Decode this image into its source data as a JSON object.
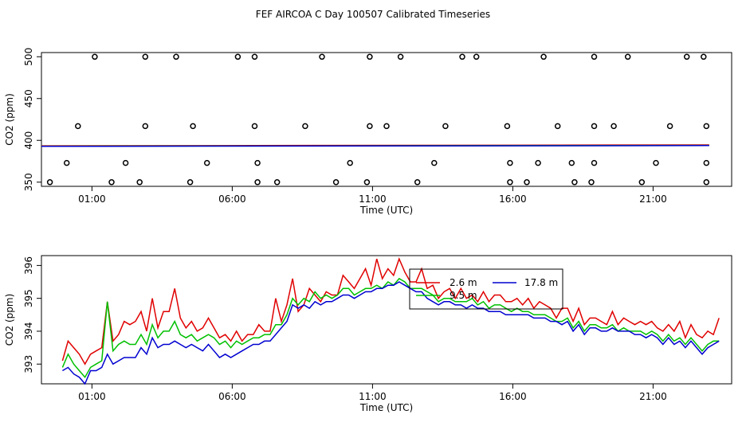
{
  "title": "FEF AIRCOA C  Day 100507  Calibrated Timeseries",
  "colors": {
    "red": "#e00000",
    "green": "#00c000",
    "blue": "#0000d0",
    "purple": "#a000a0",
    "axis": "#000000"
  },
  "chart_data": [
    {
      "type": "scatter",
      "xlabel": "Time (UTC)",
      "ylabel": "CO2 (ppm)",
      "xlim": [
        -0.8,
        23.8
      ],
      "ylim": [
        345,
        505
      ],
      "x_ticks": [
        1,
        6,
        11,
        16,
        21
      ],
      "x_tick_labels": [
        "01:00",
        "06:00",
        "11:00",
        "16:00",
        "21:00"
      ],
      "y_ticks": [
        350,
        400,
        450,
        500
      ],
      "y_tick_labels": [
        "350",
        "400",
        "450",
        "500"
      ],
      "grid": false,
      "points": [
        {
          "x": 1.1,
          "y": 500
        },
        {
          "x": 2.9,
          "y": 500
        },
        {
          "x": 4.0,
          "y": 500
        },
        {
          "x": 6.2,
          "y": 500
        },
        {
          "x": 6.8,
          "y": 500
        },
        {
          "x": 9.2,
          "y": 500
        },
        {
          "x": 10.9,
          "y": 500
        },
        {
          "x": 12.0,
          "y": 500
        },
        {
          "x": 14.2,
          "y": 500
        },
        {
          "x": 14.7,
          "y": 500
        },
        {
          "x": 17.1,
          "y": 500
        },
        {
          "x": 18.9,
          "y": 500
        },
        {
          "x": 20.1,
          "y": 500
        },
        {
          "x": 22.2,
          "y": 500
        },
        {
          "x": 22.8,
          "y": 500
        },
        {
          "x": 0.5,
          "y": 417
        },
        {
          "x": 2.9,
          "y": 417
        },
        {
          "x": 4.6,
          "y": 417
        },
        {
          "x": 6.8,
          "y": 417
        },
        {
          "x": 8.6,
          "y": 417
        },
        {
          "x": 10.9,
          "y": 417
        },
        {
          "x": 11.5,
          "y": 417
        },
        {
          "x": 13.6,
          "y": 417
        },
        {
          "x": 15.8,
          "y": 417
        },
        {
          "x": 17.6,
          "y": 417
        },
        {
          "x": 18.9,
          "y": 417
        },
        {
          "x": 19.6,
          "y": 417
        },
        {
          "x": 21.6,
          "y": 417
        },
        {
          "x": 22.9,
          "y": 417
        },
        {
          "x": 0.1,
          "y": 373
        },
        {
          "x": 2.2,
          "y": 373
        },
        {
          "x": 5.1,
          "y": 373
        },
        {
          "x": 6.9,
          "y": 373
        },
        {
          "x": 10.2,
          "y": 373
        },
        {
          "x": 13.2,
          "y": 373
        },
        {
          "x": 15.9,
          "y": 373
        },
        {
          "x": 16.9,
          "y": 373
        },
        {
          "x": 18.1,
          "y": 373
        },
        {
          "x": 18.9,
          "y": 373
        },
        {
          "x": 21.1,
          "y": 373
        },
        {
          "x": 22.9,
          "y": 373
        },
        {
          "x": -0.5,
          "y": 350
        },
        {
          "x": 1.7,
          "y": 350
        },
        {
          "x": 2.7,
          "y": 350
        },
        {
          "x": 4.5,
          "y": 350
        },
        {
          "x": 6.9,
          "y": 350
        },
        {
          "x": 7.6,
          "y": 350
        },
        {
          "x": 9.7,
          "y": 350
        },
        {
          "x": 10.8,
          "y": 350
        },
        {
          "x": 12.6,
          "y": 350
        },
        {
          "x": 15.9,
          "y": 350
        },
        {
          "x": 16.5,
          "y": 350
        },
        {
          "x": 18.2,
          "y": 350
        },
        {
          "x": 18.8,
          "y": 350
        },
        {
          "x": 20.6,
          "y": 350
        },
        {
          "x": 22.9,
          "y": 350
        }
      ],
      "series": [
        {
          "color": "#e00000",
          "x": [
            -0.8,
            23.0
          ],
          "values": [
            393.5,
            394.5
          ]
        },
        {
          "color": "#00c000",
          "x": [
            -0.8,
            23.0
          ],
          "values": [
            393.0,
            394.0
          ]
        },
        {
          "color": "#0000d0",
          "x": [
            -0.8,
            23.0
          ],
          "values": [
            392.8,
            393.8
          ]
        }
      ]
    },
    {
      "type": "line",
      "xlabel": "Time (UTC)",
      "ylabel": "CO2 (ppm)",
      "xlim": [
        -0.8,
        23.8
      ],
      "ylim": [
        392.4,
        396.3
      ],
      "x_ticks": [
        1,
        6,
        11,
        16,
        21
      ],
      "x_tick_labels": [
        "01:00",
        "06:00",
        "11:00",
        "16:00",
        "21:00"
      ],
      "y_ticks": [
        393,
        394,
        395,
        396
      ],
      "y_tick_labels": [
        "393",
        "394",
        "395",
        "396"
      ],
      "grid": false,
      "legend": {
        "position": "top-center",
        "labels": [
          "2.6 m",
          "9.5 m",
          "17.8 m"
        ]
      },
      "x": [
        -0.05,
        0.15,
        0.35,
        0.55,
        0.75,
        0.95,
        1.15,
        1.35,
        1.55,
        1.75,
        1.95,
        2.15,
        2.35,
        2.55,
        2.75,
        2.95,
        3.15,
        3.35,
        3.55,
        3.75,
        3.95,
        4.15,
        4.35,
        4.55,
        4.75,
        4.95,
        5.15,
        5.35,
        5.55,
        5.75,
        5.95,
        6.15,
        6.35,
        6.55,
        6.75,
        6.95,
        7.15,
        7.35,
        7.55,
        7.75,
        7.95,
        8.15,
        8.35,
        8.55,
        8.75,
        8.95,
        9.15,
        9.35,
        9.55,
        9.75,
        9.95,
        10.15,
        10.35,
        10.55,
        10.75,
        10.95,
        11.15,
        11.35,
        11.55,
        11.75,
        11.95,
        12.15,
        12.35,
        12.55,
        12.75,
        12.95,
        13.15,
        13.35,
        13.55,
        13.75,
        13.95,
        14.15,
        14.35,
        14.55,
        14.75,
        14.95,
        15.15,
        15.35,
        15.55,
        15.75,
        15.95,
        16.15,
        16.35,
        16.55,
        16.75,
        16.95,
        17.15,
        17.35,
        17.55,
        17.75,
        17.95,
        18.15,
        18.35,
        18.55,
        18.75,
        18.95,
        19.15,
        19.35,
        19.55,
        19.75,
        19.95,
        20.15,
        20.35,
        20.55,
        20.75,
        20.95,
        21.15,
        21.35,
        21.55,
        21.75,
        21.95,
        22.15,
        22.35,
        22.55,
        22.75,
        22.95,
        23.15,
        23.35
      ],
      "series": [
        {
          "name": "2.6 m",
          "color": "#e00000",
          "values": [
            393.1,
            393.7,
            393.5,
            393.3,
            393.0,
            393.3,
            393.4,
            393.5,
            394.9,
            393.7,
            393.9,
            394.3,
            394.2,
            394.3,
            394.6,
            394.0,
            395.0,
            394.1,
            394.6,
            394.6,
            395.3,
            394.4,
            394.1,
            394.3,
            394.0,
            394.1,
            394.4,
            394.1,
            393.8,
            393.9,
            393.7,
            394.0,
            393.7,
            393.9,
            393.9,
            394.2,
            394.0,
            394.0,
            395.0,
            394.3,
            394.8,
            395.6,
            394.6,
            394.8,
            395.3,
            395.1,
            394.9,
            395.2,
            395.1,
            395.1,
            395.7,
            395.5,
            395.3,
            395.6,
            395.9,
            395.4,
            396.2,
            395.6,
            395.9,
            395.7,
            396.2,
            395.8,
            395.5,
            395.5,
            395.9,
            395.3,
            395.4,
            395.0,
            395.2,
            395.3,
            395.0,
            395.3,
            395.0,
            395.1,
            394.9,
            395.2,
            394.9,
            395.1,
            395.1,
            394.9,
            394.9,
            395.0,
            394.8,
            395.0,
            394.7,
            394.9,
            394.8,
            394.7,
            394.4,
            394.7,
            394.7,
            394.3,
            394.7,
            394.2,
            394.4,
            394.4,
            394.3,
            394.2,
            394.6,
            394.2,
            394.4,
            394.3,
            394.2,
            394.3,
            394.2,
            394.3,
            394.1,
            394.0,
            394.2,
            394.0,
            394.3,
            393.8,
            394.2,
            393.9,
            393.8,
            394.0,
            393.9,
            394.4
          ]
        },
        {
          "name": "9.5 m",
          "color": "#00c000",
          "values": [
            392.9,
            393.3,
            393.0,
            392.8,
            392.6,
            392.9,
            393.0,
            393.1,
            394.9,
            393.4,
            393.6,
            393.7,
            393.6,
            393.6,
            393.9,
            393.6,
            394.2,
            393.8,
            394.0,
            394.0,
            394.3,
            393.9,
            393.8,
            393.9,
            393.7,
            393.8,
            393.9,
            393.8,
            393.6,
            393.7,
            393.5,
            393.7,
            393.6,
            393.7,
            393.8,
            393.8,
            393.9,
            393.9,
            394.2,
            394.2,
            394.5,
            395.0,
            394.8,
            395.0,
            394.9,
            395.2,
            395.0,
            395.1,
            395.0,
            395.1,
            395.3,
            395.3,
            395.1,
            395.2,
            395.3,
            395.3,
            395.4,
            395.3,
            395.5,
            395.4,
            395.6,
            395.5,
            395.3,
            395.3,
            395.3,
            395.2,
            395.1,
            394.9,
            395.0,
            395.0,
            394.9,
            394.9,
            394.9,
            395.0,
            394.8,
            394.9,
            394.7,
            394.8,
            394.8,
            394.7,
            394.6,
            394.7,
            394.6,
            394.6,
            394.5,
            394.5,
            394.5,
            394.4,
            394.3,
            394.3,
            394.4,
            394.1,
            394.3,
            394.0,
            394.2,
            394.2,
            394.1,
            394.1,
            394.2,
            394.0,
            394.1,
            394.0,
            394.0,
            394.0,
            393.9,
            394.0,
            393.9,
            393.7,
            393.9,
            393.7,
            393.8,
            393.6,
            393.8,
            393.6,
            393.4,
            393.6,
            393.7,
            393.7
          ]
        },
        {
          "name": "17.8 m",
          "color": "#0000d0",
          "values": [
            392.8,
            392.9,
            392.7,
            392.6,
            392.4,
            392.8,
            392.8,
            392.9,
            393.3,
            393.0,
            393.1,
            393.2,
            393.2,
            393.2,
            393.5,
            393.3,
            393.8,
            393.5,
            393.6,
            393.6,
            393.7,
            393.6,
            393.5,
            393.6,
            393.5,
            393.4,
            393.6,
            393.4,
            393.2,
            393.3,
            393.2,
            393.3,
            393.4,
            393.5,
            393.6,
            393.6,
            393.7,
            393.7,
            393.9,
            394.1,
            394.3,
            394.8,
            394.7,
            394.8,
            394.7,
            394.9,
            394.8,
            394.9,
            394.9,
            395.0,
            395.1,
            395.1,
            395.0,
            395.1,
            395.2,
            395.2,
            395.3,
            395.3,
            395.4,
            395.4,
            395.5,
            395.4,
            395.3,
            395.2,
            395.2,
            395.0,
            394.9,
            394.8,
            394.9,
            394.9,
            394.8,
            394.8,
            394.7,
            394.8,
            394.7,
            394.7,
            394.6,
            394.6,
            394.6,
            394.5,
            394.5,
            394.5,
            394.5,
            394.5,
            394.4,
            394.4,
            394.4,
            394.3,
            394.3,
            394.2,
            394.3,
            394.0,
            394.2,
            393.9,
            394.1,
            394.1,
            394.0,
            394.0,
            394.1,
            394.0,
            394.0,
            394.0,
            393.9,
            393.9,
            393.8,
            393.9,
            393.8,
            393.6,
            393.8,
            393.6,
            393.7,
            393.5,
            393.7,
            393.5,
            393.3,
            393.5,
            393.6,
            393.7
          ]
        }
      ]
    }
  ]
}
